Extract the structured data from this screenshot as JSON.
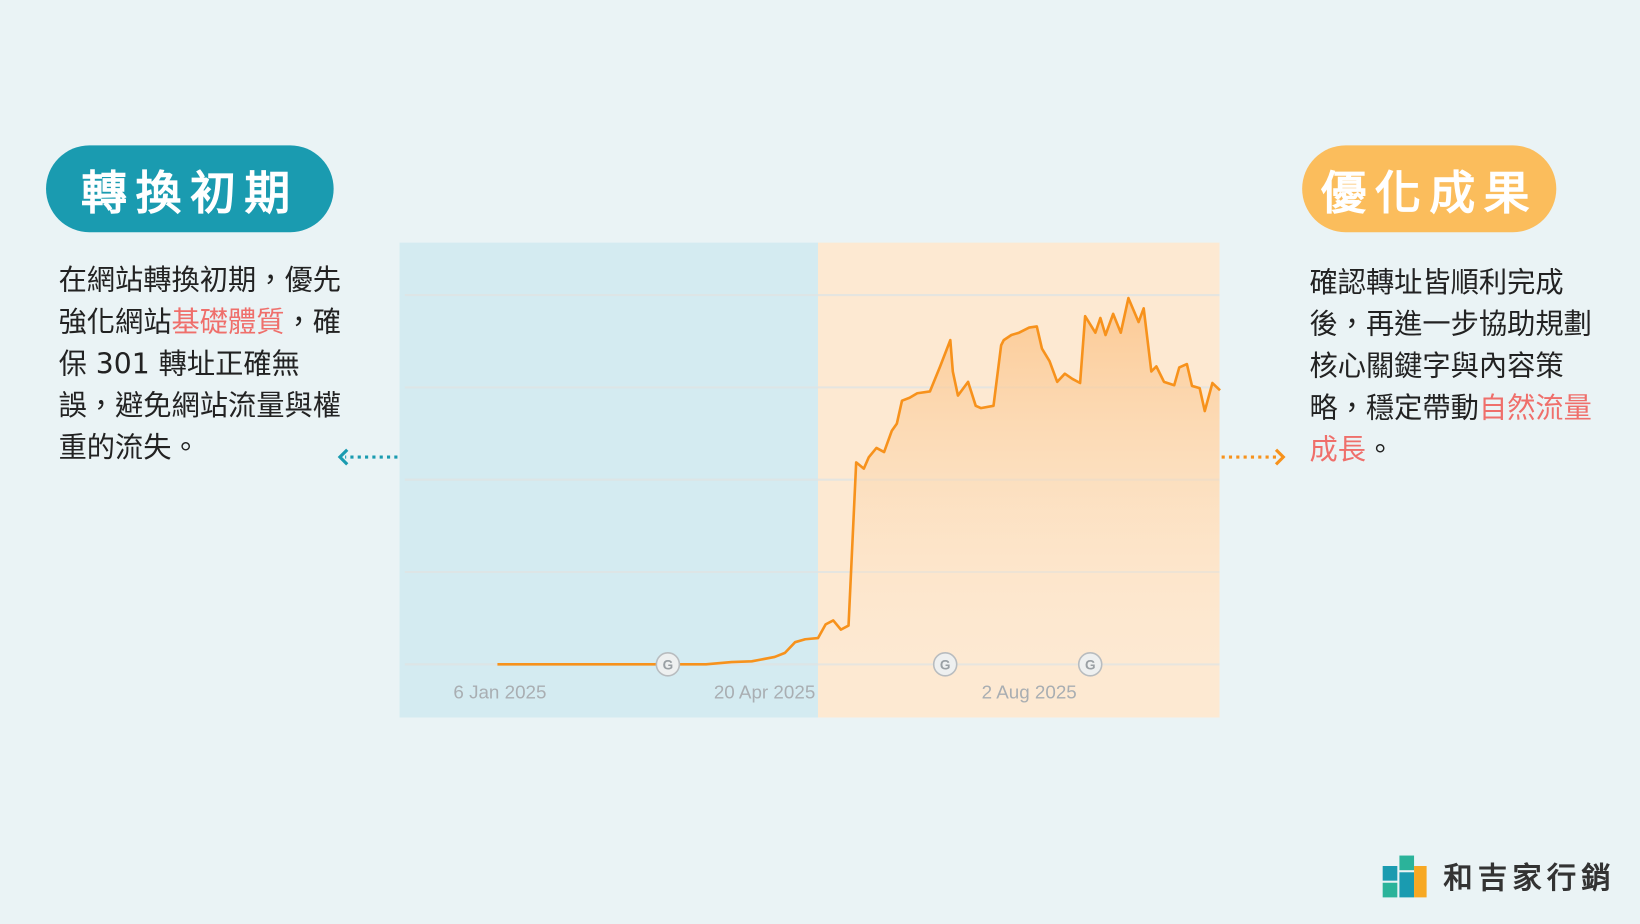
{
  "left_panel": {
    "badge": "轉換初期",
    "text": [
      "在網站轉換初期，優先強化網站",
      "基礎體質",
      "，確保 301 轉址正確無誤，避免網站流量與權重的流失。"
    ]
  },
  "right_panel": {
    "badge": "優化成果",
    "text": [
      "確認轉址皆順利完成後，再進一步協助規劃核心關鍵字與內容策略，穩定帶動",
      "自然流量成長",
      "。"
    ]
  },
  "logo": "和吉家行銷",
  "chart_data": {
    "type": "line",
    "x": [
      "2025-01-05",
      "2025-03-28",
      "2025-04-07",
      "2025-04-15",
      "2025-04-24",
      "2025-04-28",
      "2025-05-02",
      "2025-05-06",
      "2025-05-11",
      "2025-05-14",
      "2025-05-17",
      "2025-05-20",
      "2025-05-23",
      "2025-05-26",
      "2025-05-29",
      "2025-05-31",
      "2025-06-03",
      "2025-06-06",
      "2025-06-09",
      "2025-06-11",
      "2025-06-13",
      "2025-06-16",
      "2025-06-19",
      "2025-06-24",
      "2025-06-28",
      "2025-07-02",
      "2025-07-03",
      "2025-07-05",
      "2025-07-09",
      "2025-07-12",
      "2025-07-14",
      "2025-07-19",
      "2025-07-22",
      "2025-07-23",
      "2025-07-26",
      "2025-07-29",
      "2025-08-02",
      "2025-08-05",
      "2025-08-07",
      "2025-08-10",
      "2025-08-13",
      "2025-08-16",
      "2025-08-19",
      "2025-08-22",
      "2025-08-24",
      "2025-08-28",
      "2025-08-30",
      "2025-09-01",
      "2025-09-04",
      "2025-09-07",
      "2025-09-10",
      "2025-09-14",
      "2025-09-16",
      "2025-09-19",
      "2025-09-21",
      "2025-09-24",
      "2025-09-28",
      "2025-09-30",
      "2025-10-03",
      "2025-10-05",
      "2025-10-08",
      "2025-10-10",
      "2025-10-13",
      "2025-10-16"
    ],
    "values": [
      0,
      0,
      0.6,
      0.8,
      2.0,
      3.1,
      6.0,
      6.8,
      7.1,
      10.8,
      11.9,
      9.4,
      10.5,
      54.7,
      53.0,
      56.1,
      58.6,
      57.5,
      63.2,
      65.2,
      71.4,
      72.2,
      73.4,
      73.9,
      80.7,
      87.8,
      79.3,
      72.8,
      76.5,
      70.0,
      69.4,
      70.0,
      86.4,
      87.8,
      89.2,
      89.8,
      91.2,
      91.5,
      85.5,
      82.1,
      76.5,
      78.7,
      77.3,
      76.2,
      94.3,
      89.8,
      93.8,
      89.2,
      94.9,
      89.8,
      99.2,
      92.7,
      96.4,
      79.3,
      80.7,
      76.5,
      75.6,
      80.4,
      81.3,
      75.4,
      74.8,
      68.6,
      76.2,
      74.2
    ],
    "color": "#f7921c",
    "ylim": [
      -14.4,
      114.2
    ],
    "yticks": [
      0,
      25,
      50,
      75,
      100
    ],
    "grid": true,
    "xticks": [
      {
        "value": "2025-01-06",
        "label": "6 Jan 2025"
      },
      {
        "value": "2025-04-20",
        "label": "20 Apr 2025"
      },
      {
        "value": "2025-08-02",
        "label": "2 Aug 2025"
      }
    ],
    "phase_split": "2025-05-11",
    "phase_colors": [
      "#d4ebf1",
      "#fde9d2"
    ],
    "annotations": [
      {
        "x": "2025-03-13",
        "label": "G"
      },
      {
        "x": "2025-06-30",
        "label": "G"
      },
      {
        "x": "2025-08-26",
        "label": "G"
      }
    ]
  }
}
